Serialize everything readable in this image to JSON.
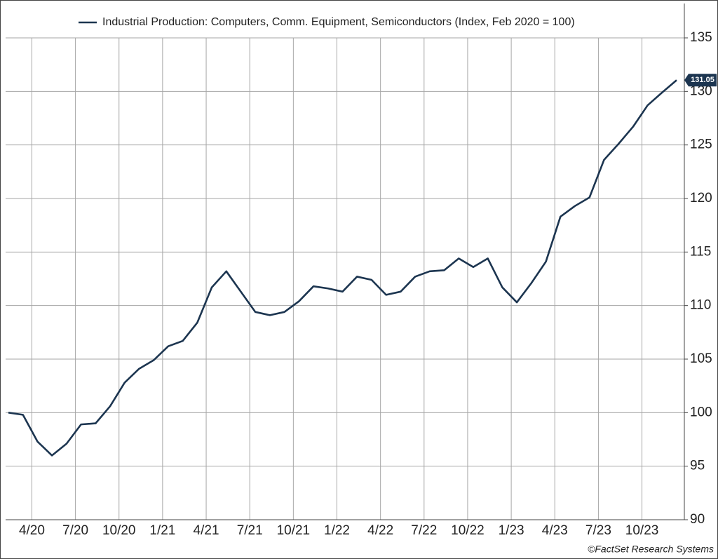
{
  "chart_data": {
    "type": "line",
    "categories": [
      null,
      null,
      "4/20",
      null,
      null,
      "7/20",
      null,
      null,
      "10/20",
      null,
      null,
      "1/21",
      null,
      null,
      "4/21",
      null,
      null,
      "7/21",
      null,
      null,
      "10/21",
      null,
      null,
      "1/22",
      null,
      null,
      "4/22",
      null,
      null,
      "7/22",
      null,
      null,
      "10/22",
      null,
      null,
      "1/23",
      null,
      null,
      "4/23",
      null,
      null,
      "7/23",
      null,
      null,
      "10/23",
      null,
      null
    ],
    "series": [
      {
        "name": "Industrial Production: Computers, Comm. Equipment, Semiconductors (Index, Feb 2020 = 100)",
        "color": "#1c3550",
        "values": [
          100.0,
          99.8,
          97.3,
          96.0,
          97.1,
          98.9,
          99.0,
          100.6,
          102.8,
          104.1,
          104.9,
          106.2,
          106.7,
          108.4,
          111.7,
          113.2,
          111.3,
          109.4,
          109.1,
          109.4,
          110.4,
          111.8,
          111.6,
          111.3,
          112.7,
          112.4,
          111.0,
          111.3,
          112.7,
          113.2,
          113.3,
          114.4,
          113.6,
          114.4,
          111.7,
          110.3,
          112.1,
          114.1,
          118.3,
          119.3,
          120.1,
          123.6,
          125.1,
          126.7,
          128.7,
          129.9,
          131.05
        ]
      }
    ],
    "ylim": [
      90,
      135
    ],
    "yticks": [
      90,
      95,
      100,
      105,
      110,
      115,
      120,
      125,
      130,
      135
    ],
    "grid": true,
    "legend": "top",
    "source": "©FactSet Research Systems"
  }
}
